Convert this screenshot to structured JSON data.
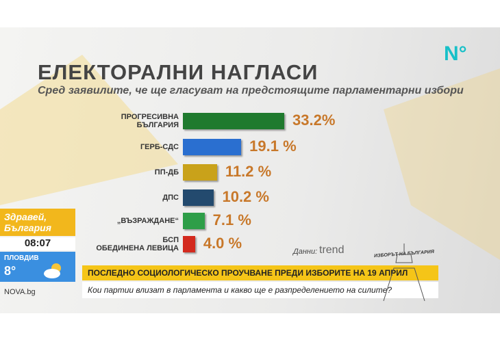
{
  "chart_data": {
    "type": "bar",
    "orientation": "horizontal",
    "title": "ЕЛЕКТОРАЛНИ НАГЛАСИ",
    "subtitle": "Сред заявилите, че ще гласуват на предстоящите парламентарни избори",
    "categories": [
      "ПРОГРЕСИВНА\nБЪЛГАРИЯ",
      "ГЕРБ-СДС",
      "ПП-ДБ",
      "ДПС",
      "„ВЪЗРАЖДАНЕ“",
      "БСП\nОБЕДИНЕНА ЛЕВИЦА"
    ],
    "values": [
      33.2,
      19.1,
      11.2,
      10.2,
      7.1,
      4.0
    ],
    "value_labels": [
      "33.2%",
      "19.1 %",
      "11.2 %",
      "10.2 %",
      "7.1 %",
      "4.0 %"
    ],
    "colors": [
      "#1f7a2e",
      "#2a6fd0",
      "#c9a21a",
      "#234a6e",
      "#2e9e48",
      "#d32a1e"
    ],
    "source_label": "Данни:",
    "source": "trend"
  },
  "logo": "N°",
  "show": {
    "name": "Здравей, България",
    "time": "08:07",
    "city": "ПЛОВДИВ",
    "temperature": "8°",
    "site": "NOVA.bg"
  },
  "banner": {
    "headline": "ПОСЛЕДНО СОЦИОЛОГИЧЕСКО ПРОУЧВАНЕ ПРЕДИ ИЗБОРИТЕ НА 19 АПРИЛ",
    "question": "Кои партии влизат в парламента и какво ще е разпределението на силите?",
    "brand": "ИЗБОРЪТ НА БЪЛГАРИЯ"
  }
}
